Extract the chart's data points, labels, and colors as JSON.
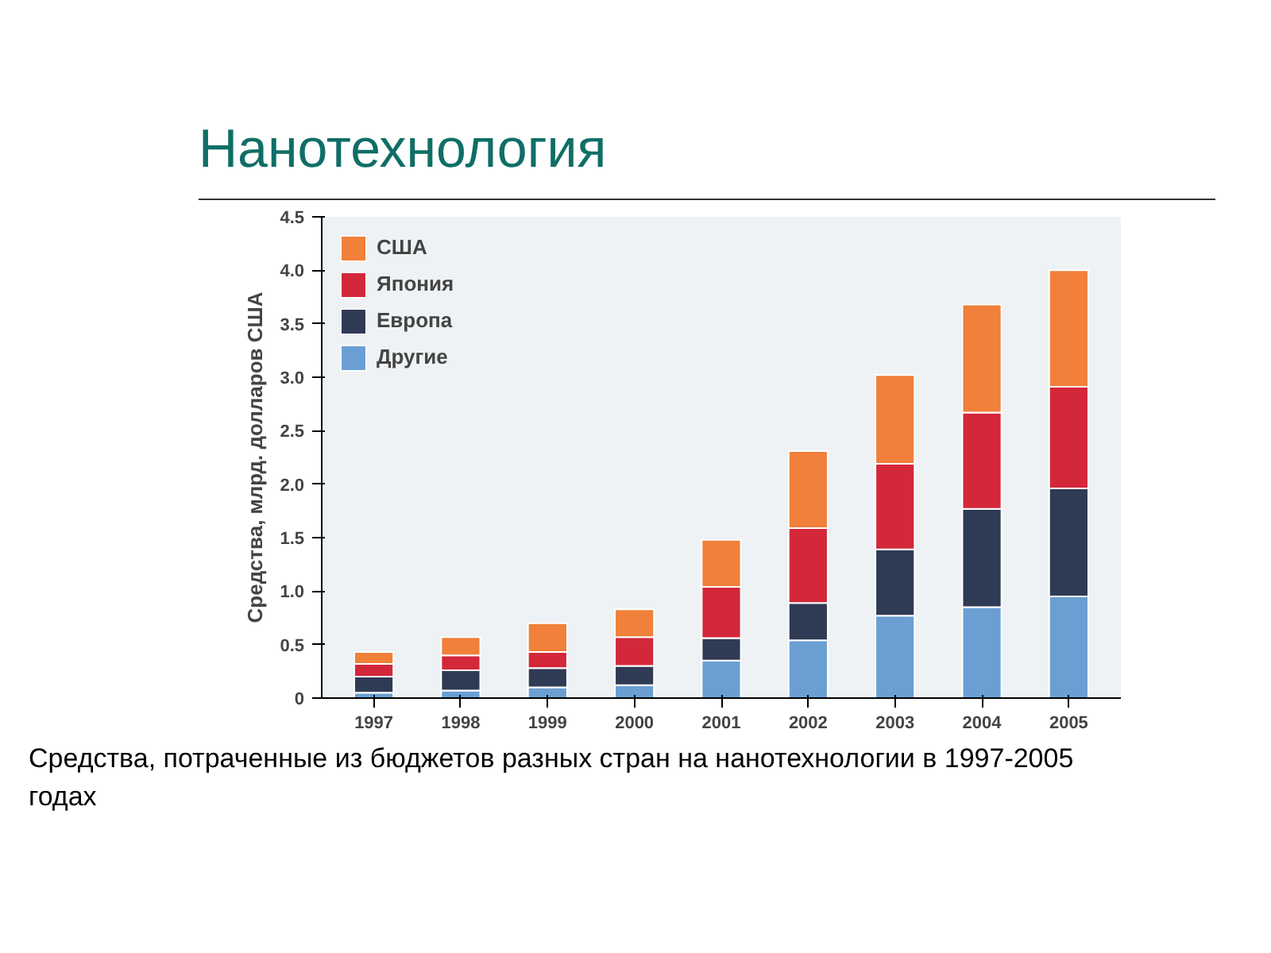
{
  "chart_data": {
    "type": "bar",
    "stacked": true,
    "title": "Нанотехнология",
    "ylabel": "Средства, млрд. долларов США",
    "categories": [
      "1997",
      "1998",
      "1999",
      "2000",
      "2001",
      "2002",
      "2003",
      "2004",
      "2005"
    ],
    "series": [
      {
        "name": "Другие",
        "color": "#6b9fd3",
        "values": [
          0.05,
          0.07,
          0.1,
          0.12,
          0.35,
          0.54,
          0.77,
          0.85,
          0.95
        ]
      },
      {
        "name": "Европа",
        "color": "#2f3a55",
        "values": [
          0.15,
          0.19,
          0.18,
          0.18,
          0.21,
          0.35,
          0.62,
          0.92,
          1.01
        ]
      },
      {
        "name": "Япония",
        "color": "#d3273a",
        "values": [
          0.12,
          0.14,
          0.15,
          0.27,
          0.48,
          0.7,
          0.8,
          0.9,
          0.95
        ]
      },
      {
        "name": "США",
        "color": "#f0803a",
        "values": [
          0.11,
          0.17,
          0.27,
          0.26,
          0.44,
          0.72,
          0.83,
          1.01,
          1.09
        ]
      }
    ],
    "ylim": [
      0,
      4.5
    ],
    "yticks": [
      0,
      {
        "value": 0.5,
        "label": "0.5"
      },
      {
        "value": 1,
        "label": "1.0"
      },
      {
        "value": 1.5,
        "label": "1.5"
      },
      {
        "value": 2,
        "label": "2.0"
      },
      {
        "value": 2.5,
        "label": "2.5"
      },
      {
        "value": 3,
        "label": "3.0"
      },
      {
        "value": 3.5,
        "label": "3.5"
      },
      {
        "value": 4,
        "label": "4.0"
      },
      {
        "value": 4.5,
        "label": "4.5"
      }
    ],
    "grid": false,
    "legend": "top left",
    "annotations": [
      "Средства, потраченные из бюджетов разных стран на нанотехнологии в 1997-2005 годах"
    ]
  }
}
